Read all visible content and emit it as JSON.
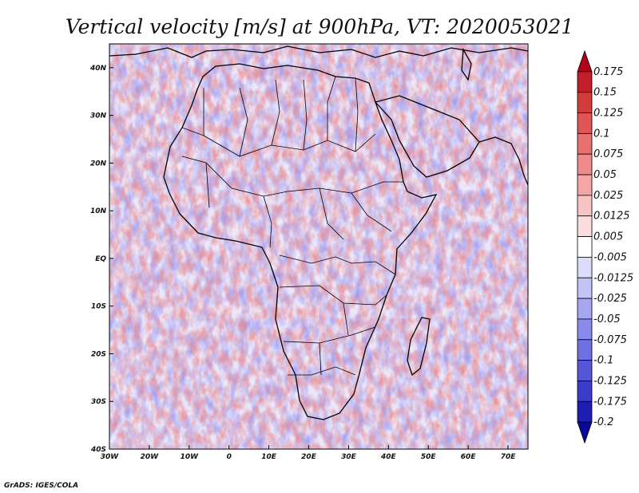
{
  "chart_data": {
    "type": "heatmap",
    "title": "Vertical velocity [m/s] at 900hPa, VT: 2020053021",
    "variable": "Vertical velocity",
    "units": "m/s",
    "level": "900hPa",
    "valid_time": "2020053021",
    "x_range": [
      -30,
      75
    ],
    "y_range": [
      -40,
      45
    ],
    "x_ticks": [
      "30W",
      "20W",
      "10W",
      "0",
      "10E",
      "20E",
      "30E",
      "40E",
      "50E",
      "60E",
      "70E"
    ],
    "y_ticks": [
      "40S",
      "30S",
      "20S",
      "10S",
      "EQ",
      "10N",
      "20N",
      "30N",
      "40N"
    ],
    "colorbar": {
      "levels": [
        "0.175",
        "0.15",
        "0.125",
        "0.1",
        "0.075",
        "0.05",
        "0.025",
        "0.0125",
        "0.005",
        "-0.005",
        "-0.0125",
        "-0.025",
        "-0.05",
        "-0.075",
        "-0.1",
        "-0.125",
        "-0.175",
        "-0.2"
      ],
      "colors": [
        "#b3001b",
        "#c31e2a",
        "#d43b3b",
        "#e05555",
        "#e87070",
        "#ef8a8a",
        "#f4a6a6",
        "#f8c3c3",
        "#fbdddd",
        "#ffffff",
        "#dcdcfb",
        "#c3c3f7",
        "#a6a6f1",
        "#8a8aeb",
        "#7070e3",
        "#5555d8",
        "#3b3bcc",
        "#1e1eb4",
        "#0a0a99"
      ]
    },
    "credit": "GrADS: IGES/COLA"
  }
}
